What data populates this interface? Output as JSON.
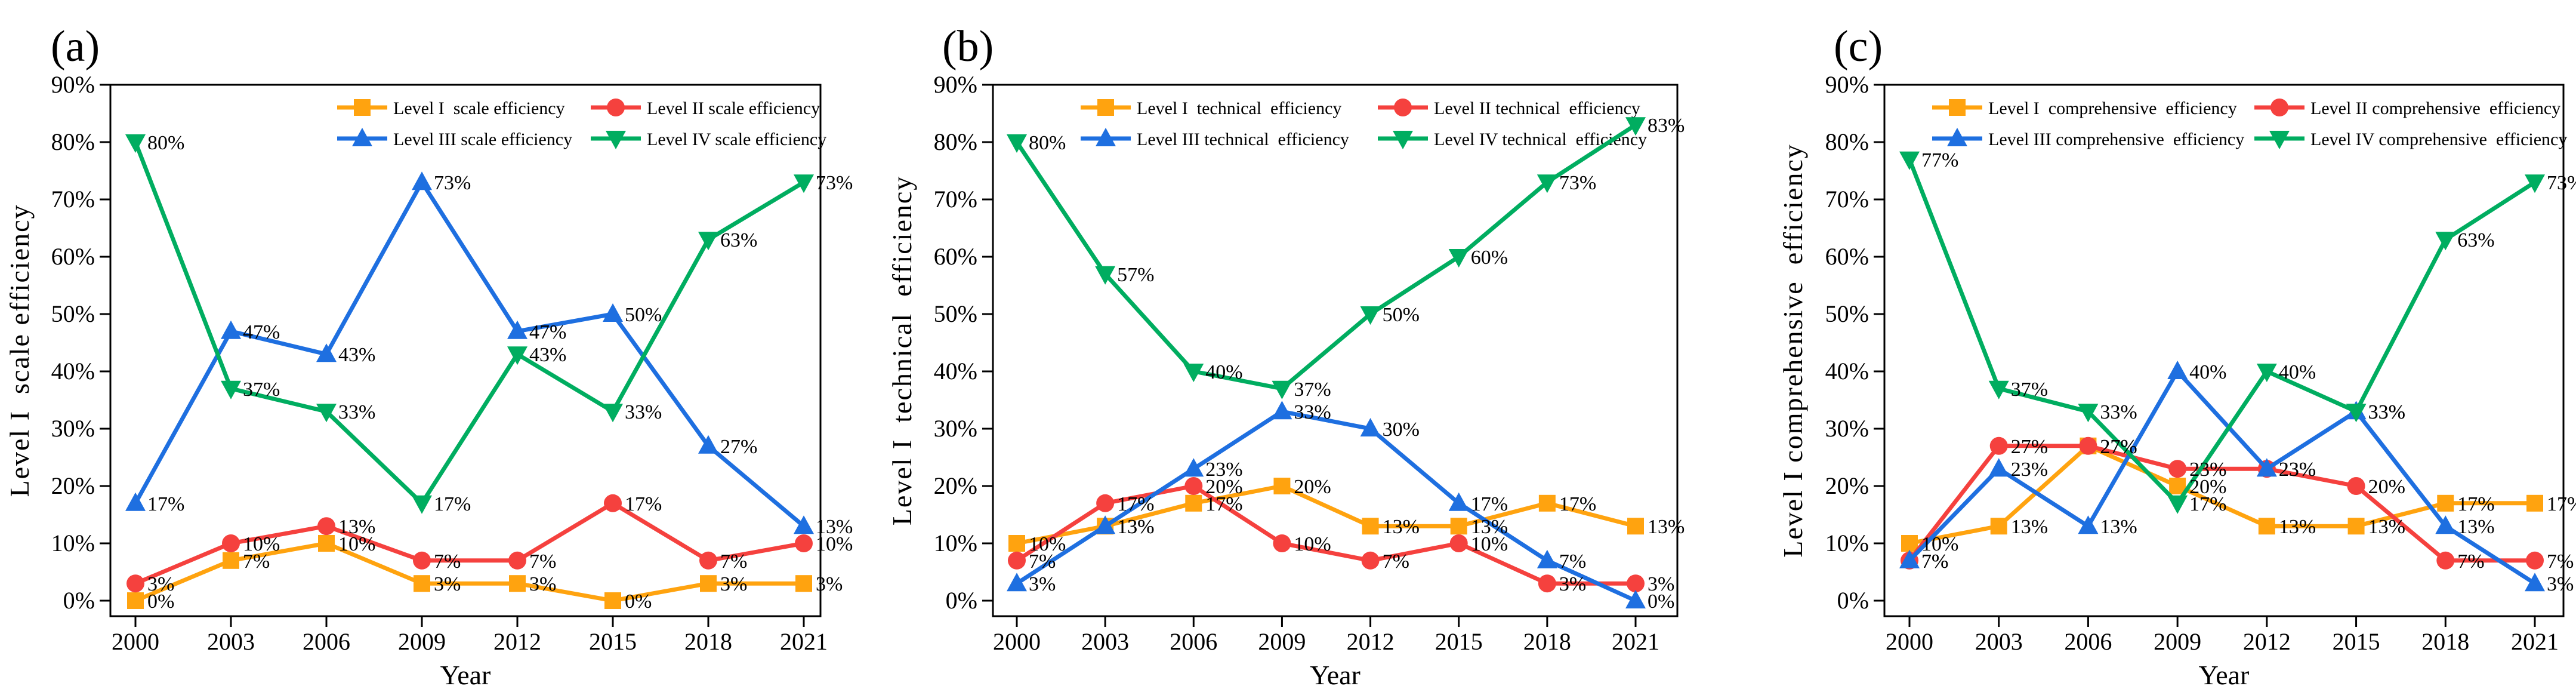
{
  "chart_data": [
    {
      "type": "line",
      "panel_label": "(a)",
      "xlabel": "Year",
      "ylabel": "Level I  scale efficiency",
      "categories": [
        "2000",
        "2003",
        "2006",
        "2009",
        "2012",
        "2015",
        "2018",
        "2021"
      ],
      "yticks": [
        "0%",
        "10%",
        "20%",
        "30%",
        "40%",
        "50%",
        "60%",
        "70%",
        "80%",
        "90%"
      ],
      "ylim": [
        0,
        90
      ],
      "grid": false,
      "legend_position": "top-inside",
      "data_label_suffix": "%",
      "series": [
        {
          "name": "Level I  scale efficiency",
          "marker": "square",
          "color": "#FFA30F",
          "values": [
            0,
            7,
            10,
            3,
            3,
            0,
            3,
            3
          ]
        },
        {
          "name": "Level II scale efficiency",
          "marker": "circle",
          "color": "#F5413E",
          "values": [
            3,
            10,
            13,
            7,
            7,
            17,
            7,
            10
          ]
        },
        {
          "name": "Level III scale efficiency",
          "marker": "triangle-up",
          "color": "#1E6FE0",
          "values": [
            17,
            47,
            43,
            73,
            47,
            50,
            27,
            13
          ]
        },
        {
          "name": "Level IV scale efficiency",
          "marker": "triangle-down",
          "color": "#00AD60",
          "values": [
            80,
            37,
            33,
            17,
            43,
            33,
            63,
            73
          ]
        }
      ]
    },
    {
      "type": "line",
      "panel_label": "(b)",
      "xlabel": "Year",
      "ylabel": "Level I  technical  efficiency",
      "categories": [
        "2000",
        "2003",
        "2006",
        "2009",
        "2012",
        "2015",
        "2018",
        "2021"
      ],
      "yticks": [
        "0%",
        "10%",
        "20%",
        "30%",
        "40%",
        "50%",
        "60%",
        "70%",
        "80%",
        "90%"
      ],
      "ylim": [
        0,
        90
      ],
      "grid": false,
      "legend_position": "top-inside",
      "data_label_suffix": "%",
      "series": [
        {
          "name": "Level I  technical  efficiency",
          "marker": "square",
          "color": "#FFA30F",
          "values": [
            10,
            13,
            17,
            20,
            13,
            13,
            17,
            13
          ]
        },
        {
          "name": "Level II technical  efficiency",
          "marker": "circle",
          "color": "#F5413E",
          "values": [
            7,
            17,
            20,
            10,
            7,
            10,
            3,
            3
          ]
        },
        {
          "name": "Level III technical  efficiency",
          "marker": "triangle-up",
          "color": "#1E6FE0",
          "values": [
            3,
            13,
            23,
            33,
            30,
            17,
            7,
            0
          ]
        },
        {
          "name": "Level IV technical  efficiency",
          "marker": "triangle-down",
          "color": "#00AD60",
          "values": [
            80,
            57,
            40,
            37,
            50,
            60,
            73,
            83
          ]
        }
      ]
    },
    {
      "type": "line",
      "panel_label": "(c)",
      "xlabel": "Year",
      "ylabel": "Level I comprehensive  efficiency",
      "categories": [
        "2000",
        "2003",
        "2006",
        "2009",
        "2012",
        "2015",
        "2018",
        "2021"
      ],
      "yticks": [
        "0%",
        "10%",
        "20%",
        "30%",
        "40%",
        "50%",
        "60%",
        "70%",
        "80%",
        "90%"
      ],
      "ylim": [
        0,
        90
      ],
      "grid": false,
      "legend_position": "top-inside",
      "data_label_suffix": "%",
      "series": [
        {
          "name": "Level I  comprehensive  efficiency",
          "marker": "square",
          "color": "#FFA30F",
          "values": [
            10,
            13,
            27,
            20,
            13,
            13,
            17,
            17
          ]
        },
        {
          "name": "Level II comprehensive  efficiency",
          "marker": "circle",
          "color": "#F5413E",
          "values": [
            7,
            27,
            27,
            23,
            23,
            20,
            7,
            7
          ]
        },
        {
          "name": "Level III comprehensive  efficiency",
          "marker": "triangle-up",
          "color": "#1E6FE0",
          "values": [
            7,
            23,
            13,
            40,
            23,
            33,
            13,
            3
          ]
        },
        {
          "name": "Level IV comprehensive  efficiency",
          "marker": "triangle-down",
          "color": "#00AD60",
          "values": [
            77,
            37,
            33,
            17,
            40,
            33,
            63,
            73
          ]
        }
      ]
    }
  ]
}
